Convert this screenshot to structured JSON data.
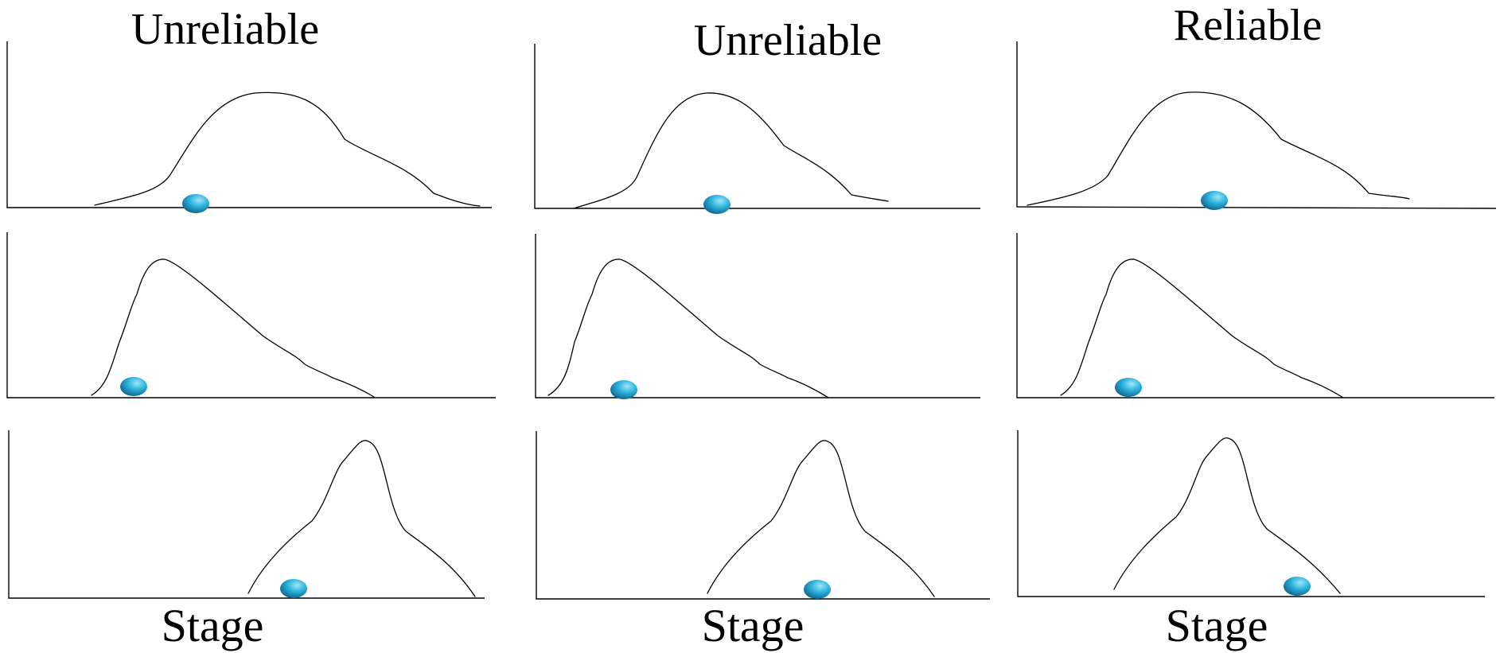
{
  "columns": [
    {
      "title": "Unreliable",
      "xlabel": "Stage"
    },
    {
      "title": "Unreliable",
      "xlabel": "Stage"
    },
    {
      "title": "Reliable",
      "xlabel": "Stage"
    }
  ],
  "rows": [
    {
      "curve": "broad-peak"
    },
    {
      "curve": "early-peak"
    },
    {
      "curve": "late-narrow-peak"
    }
  ],
  "colors": {
    "axis": "#000000",
    "curve": "#000000",
    "marker_light": "#9FE6F8",
    "marker_mid": "#2CB3DC",
    "marker_dark": "#0C5E86"
  },
  "icons": {
    "marker": "blue-ellipsoid-marker-icon"
  }
}
